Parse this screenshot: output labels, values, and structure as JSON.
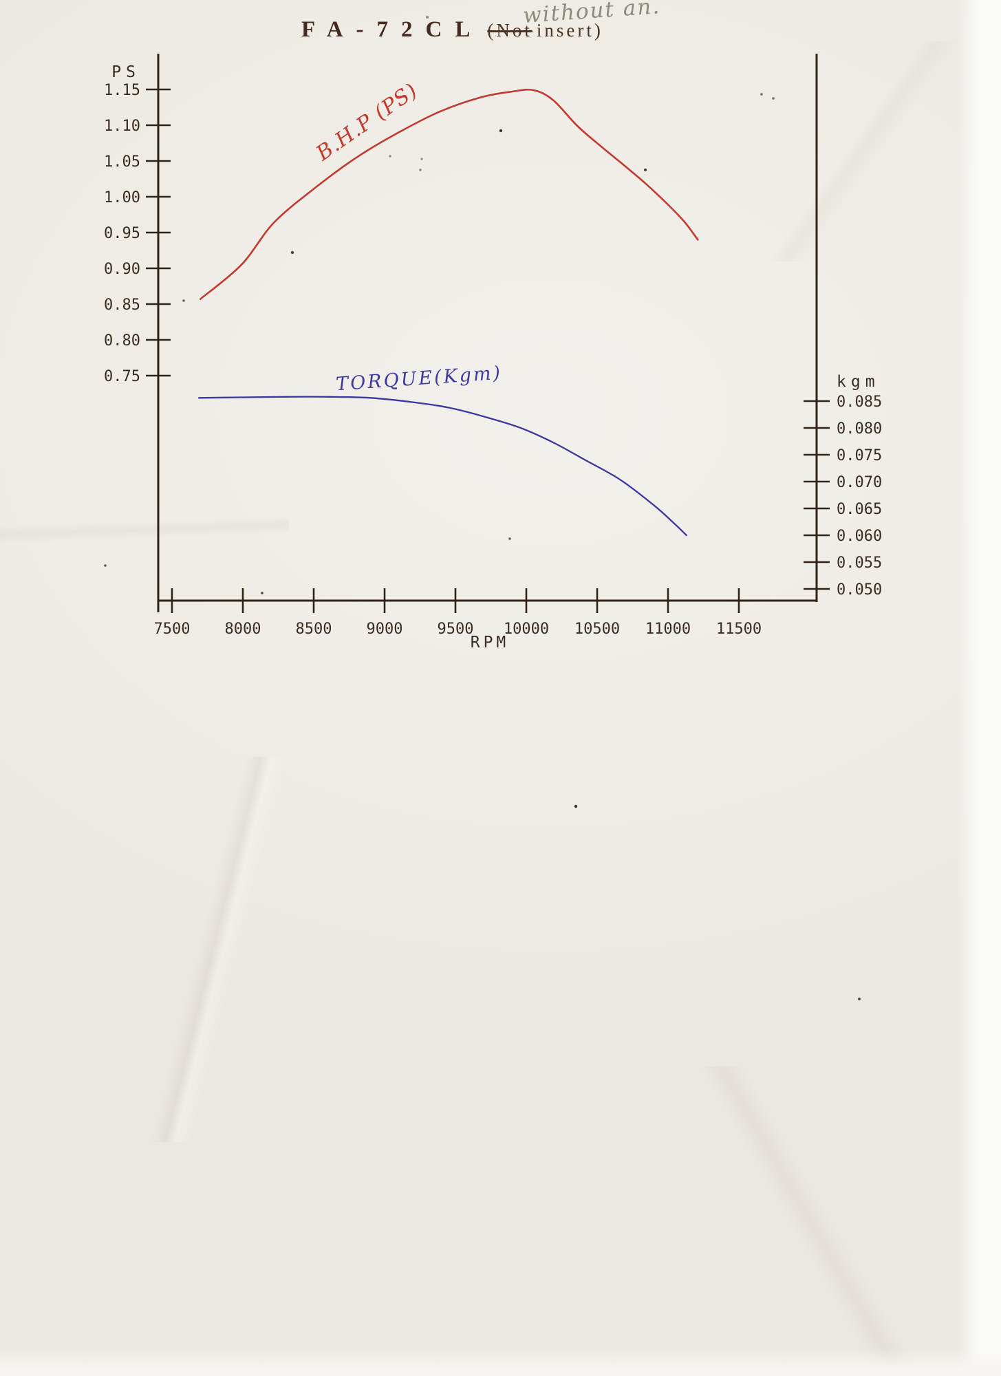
{
  "title": {
    "model": "FA-72CL",
    "struck_text": "(Not",
    "suffix": "insert)"
  },
  "annotations": {
    "pencil_note": "without an."
  },
  "colors": {
    "ink": "#3a2c21",
    "bhp_red": "#c23a2d",
    "torque_blue": "#3b37a0",
    "pencil_gray": "#8e897c",
    "paper": "#f0ede8"
  },
  "chart_data": {
    "type": "line",
    "title": "FA-72CL (Not insert)",
    "grid": false,
    "x_axis": {
      "label": "RPM",
      "range": [
        7500,
        11500
      ],
      "ticks": [
        "7500",
        "8000",
        "8500",
        "9000",
        "9500",
        "10000",
        "10500",
        "11000",
        "11500"
      ]
    },
    "y_left": {
      "label": "PS",
      "range": [
        0.75,
        1.15
      ],
      "ticks": [
        "1.15",
        "1.10",
        "1.05",
        "1.00",
        "0.95",
        "0.90",
        "0.85",
        "0.80",
        "0.75"
      ]
    },
    "y_right": {
      "label": "kgm",
      "range": [
        0.05,
        0.085
      ],
      "ticks": [
        "0.085",
        "0.080",
        "0.075",
        "0.070",
        "0.065",
        "0.060",
        "0.055",
        "0.050"
      ]
    },
    "series": [
      {
        "name": "B.H.P (PS)",
        "axis": "left",
        "color": "#c23a2d",
        "points": [
          [
            7700,
            0.857
          ],
          [
            7990,
            0.905
          ],
          [
            8220,
            0.964
          ],
          [
            8520,
            1.014
          ],
          [
            8810,
            1.056
          ],
          [
            9100,
            1.09
          ],
          [
            9390,
            1.119
          ],
          [
            9680,
            1.139
          ],
          [
            9900,
            1.147
          ],
          [
            10050,
            1.149
          ],
          [
            10190,
            1.135
          ],
          [
            10360,
            1.099
          ],
          [
            10530,
            1.07
          ],
          [
            10690,
            1.044
          ],
          [
            10850,
            1.017
          ],
          [
            11010,
            0.987
          ],
          [
            11120,
            0.964
          ],
          [
            11210,
            0.94
          ]
        ]
      },
      {
        "name": "TORQUE(Kgm)",
        "axis": "right",
        "color": "#3b37a0",
        "points": [
          [
            7690,
            0.0856
          ],
          [
            8000,
            0.0857
          ],
          [
            8300,
            0.0858
          ],
          [
            8600,
            0.0858
          ],
          [
            8900,
            0.0856
          ],
          [
            9200,
            0.0848
          ],
          [
            9450,
            0.0838
          ],
          [
            9690,
            0.0822
          ],
          [
            9950,
            0.0801
          ],
          [
            10190,
            0.0773
          ],
          [
            10410,
            0.0741
          ],
          [
            10660,
            0.0704
          ],
          [
            10900,
            0.0656
          ],
          [
            11040,
            0.0623
          ],
          [
            11130,
            0.06
          ]
        ]
      }
    ]
  }
}
